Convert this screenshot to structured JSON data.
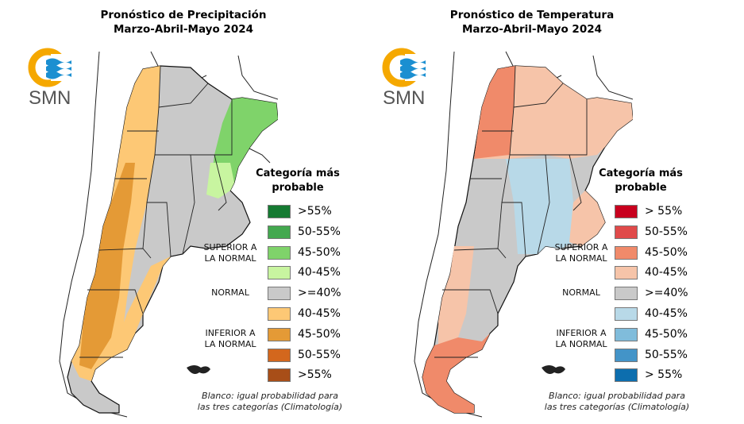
{
  "logo": {
    "text": "SMN",
    "colors": {
      "sun": "#f5a800",
      "waves": "#1b8fd1"
    }
  },
  "panels": [
    {
      "id": "precipitation",
      "title_line1": "Pronóstico de Precipitación",
      "title_line2": "Marzo-Abril-Mayo 2024",
      "legend": {
        "title_line1": "Categoría más",
        "title_line2": "probable",
        "groups": {
          "superior": "SUPERIOR A\nLA NORMAL",
          "normal": "NORMAL",
          "inferior": "INFERIOR A\nLA NORMAL"
        },
        "items": [
          {
            "label": ">55%",
            "color": "#157a32",
            "group": "superior"
          },
          {
            "label": "50-55%",
            "color": "#43a84f",
            "group": "superior"
          },
          {
            "label": "45-50%",
            "color": "#7fd36a",
            "group": "superior"
          },
          {
            "label": "40-45%",
            "color": "#c8f5a0",
            "group": "superior"
          },
          {
            "label": ">=40%",
            "color": "#c9c9c9",
            "group": "normal"
          },
          {
            "label": "40-45%",
            "color": "#fdc875",
            "group": "inferior"
          },
          {
            "label": "45-50%",
            "color": "#e49a36",
            "group": "inferior"
          },
          {
            "label": "50-55%",
            "color": "#d3671d",
            "group": "inferior"
          },
          {
            "label": ">55%",
            "color": "#a84e18",
            "group": "inferior"
          }
        ],
        "note_line1": "Blanco: igual probabilidad para",
        "note_line2": "las tres categorías (Climatología)"
      }
    },
    {
      "id": "temperature",
      "title_line1": "Pronóstico de Temperatura",
      "title_line2": "Marzo-Abril-Mayo 2024",
      "legend": {
        "title_line1": "Categoría más",
        "title_line2": "probable",
        "groups": {
          "superior": "SUPERIOR A\nLA NORMAL",
          "normal": "NORMAL",
          "inferior": "INFERIOR A\nLA NORMAL"
        },
        "items": [
          {
            "label": "> 55%",
            "color": "#c8001e",
            "group": "superior"
          },
          {
            "label": "50-55%",
            "color": "#e04a4a",
            "group": "superior"
          },
          {
            "label": "45-50%",
            "color": "#f08a6a",
            "group": "superior"
          },
          {
            "label": "40-45%",
            "color": "#f6c4a9",
            "group": "superior"
          },
          {
            "label": ">=40%",
            "color": "#c9c9c9",
            "group": "normal"
          },
          {
            "label": "40-45%",
            "color": "#b8d9e8",
            "group": "inferior"
          },
          {
            "label": "45-50%",
            "color": "#80bcdb",
            "group": "inferior"
          },
          {
            "label": "50-55%",
            "color": "#4394c8",
            "group": "inferior"
          },
          {
            "label": "> 55%",
            "color": "#0d6eae",
            "group": "inferior"
          }
        ],
        "note_line1": "Blanco: igual probabilidad para",
        "note_line2": "las tres categorías (Climatología)"
      }
    }
  ],
  "map_regions": {
    "precipitation": {
      "west_andes": "inferior 45-50%",
      "west_central": "inferior 40-45%",
      "center": "normal",
      "northeast_litoral": "superior 40-50%",
      "south_patagonia": "normal"
    },
    "temperature": {
      "northwest": "superior 45-50%",
      "north": "superior 40-45%",
      "center": "inferior 40-45%",
      "west_central": "normal",
      "southeast_buenos_aires": "superior 40-45%",
      "south_patagonia": "superior 45-50%"
    }
  }
}
